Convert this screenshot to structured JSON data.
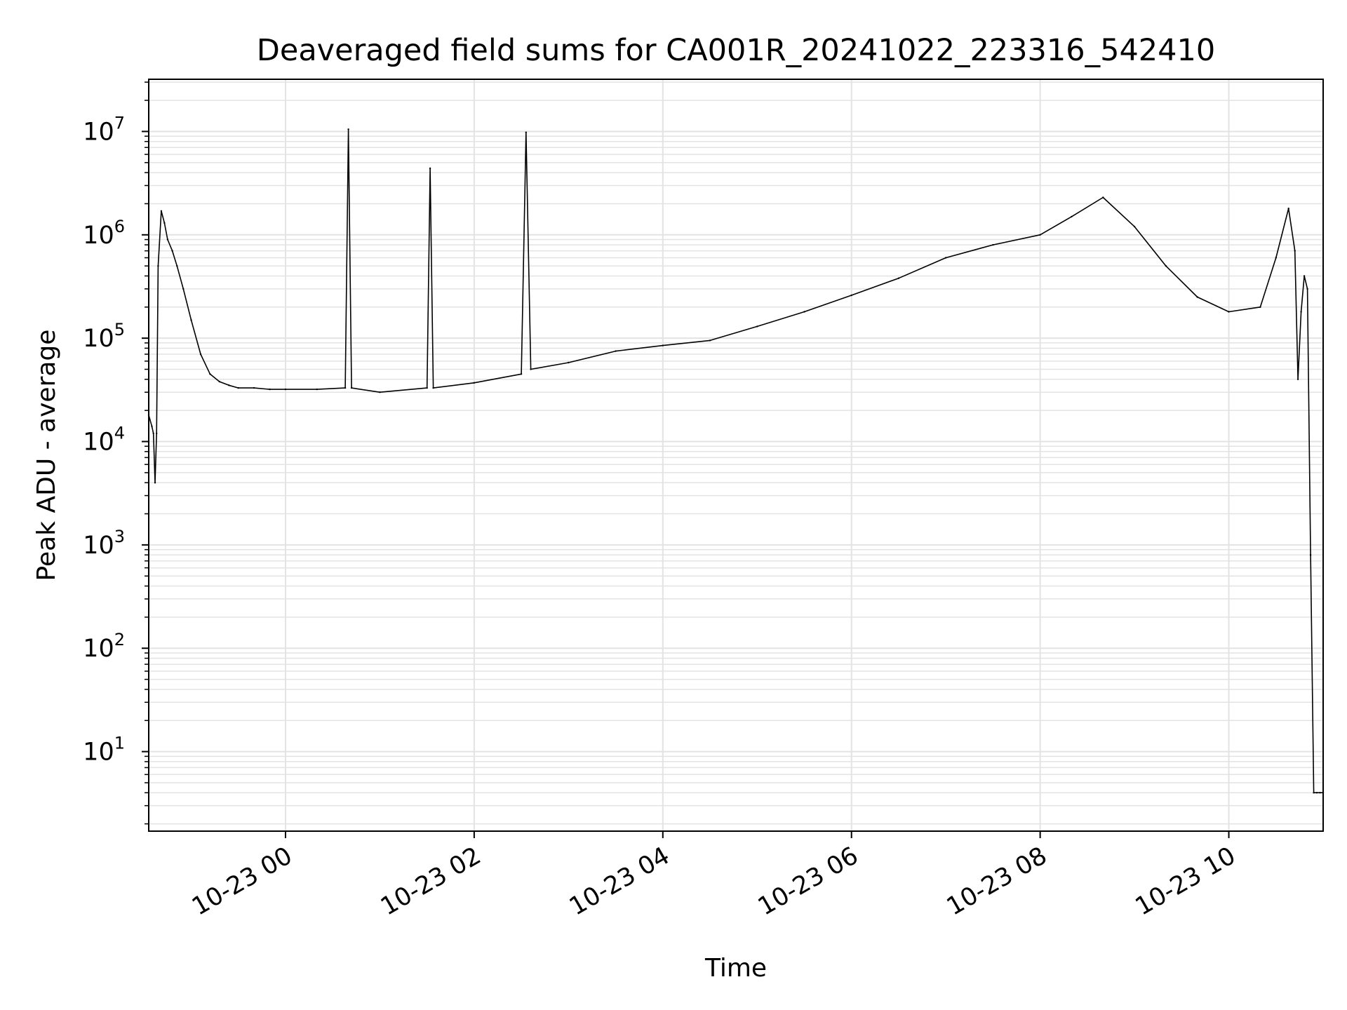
{
  "chart_data": {
    "type": "line",
    "title": "Deaveraged field sums for CA001R_20241022_223316_542410",
    "xlabel": "Time",
    "ylabel": "Peak ADU - average",
    "yscale": "log",
    "ylim": [
      1.7,
      32000000
    ],
    "xlim": [
      "2024-10-22 22:33",
      "2024-10-23 11:00"
    ],
    "grid": true,
    "line_color": "#000000",
    "x_ticks": [
      {
        "value": "2024-10-23 00:00",
        "label": "10-23 00"
      },
      {
        "value": "2024-10-23 02:00",
        "label": "10-23 02"
      },
      {
        "value": "2024-10-23 04:00",
        "label": "10-23 04"
      },
      {
        "value": "2024-10-23 06:00",
        "label": "10-23 06"
      },
      {
        "value": "2024-10-23 08:00",
        "label": "10-23 08"
      },
      {
        "value": "2024-10-23 10:00",
        "label": "10-23 10"
      }
    ],
    "y_ticks": [
      {
        "value": 10,
        "base": "10",
        "exp": "1"
      },
      {
        "value": 100,
        "base": "10",
        "exp": "2"
      },
      {
        "value": 1000,
        "base": "10",
        "exp": "3"
      },
      {
        "value": 10000,
        "base": "10",
        "exp": "4"
      },
      {
        "value": 100000,
        "base": "10",
        "exp": "5"
      },
      {
        "value": 1000000,
        "base": "10",
        "exp": "6"
      },
      {
        "value": 10000000,
        "base": "10",
        "exp": "7"
      }
    ],
    "series": [
      {
        "x": [
          "2024-10-22 22:33",
          "2024-10-22 22:35",
          "2024-10-22 22:36",
          "2024-10-22 22:37",
          "2024-10-22 22:38",
          "2024-10-22 22:39",
          "2024-10-22 22:41",
          "2024-10-22 22:43",
          "2024-10-22 22:45",
          "2024-10-22 22:48",
          "2024-10-22 22:51",
          "2024-10-22 22:55",
          "2024-10-22 23:00",
          "2024-10-22 23:06",
          "2024-10-22 23:12",
          "2024-10-22 23:18",
          "2024-10-22 23:24",
          "2024-10-22 23:30",
          "2024-10-22 23:40",
          "2024-10-22 23:50",
          "2024-10-23 00:00",
          "2024-10-23 00:20",
          "2024-10-23 00:38",
          "2024-10-23 00:40",
          "2024-10-23 00:42",
          "2024-10-23 01:00",
          "2024-10-23 01:30",
          "2024-10-23 01:32",
          "2024-10-23 01:34",
          "2024-10-23 02:00",
          "2024-10-23 02:30",
          "2024-10-23 02:33",
          "2024-10-23 02:36",
          "2024-10-23 03:00",
          "2024-10-23 03:30",
          "2024-10-23 04:00",
          "2024-10-23 04:30",
          "2024-10-23 05:00",
          "2024-10-23 05:30",
          "2024-10-23 06:00",
          "2024-10-23 06:30",
          "2024-10-23 07:00",
          "2024-10-23 07:30",
          "2024-10-23 08:00",
          "2024-10-23 08:20",
          "2024-10-23 08:40",
          "2024-10-23 09:00",
          "2024-10-23 09:20",
          "2024-10-23 09:40",
          "2024-10-23 10:00",
          "2024-10-23 10:20",
          "2024-10-23 10:30",
          "2024-10-23 10:38",
          "2024-10-23 10:42",
          "2024-10-23 10:44",
          "2024-10-23 10:46",
          "2024-10-23 10:48",
          "2024-10-23 10:50",
          "2024-10-23 10:52",
          "2024-10-23 10:54",
          "2024-10-23 10:56",
          "2024-10-23 10:58",
          "2024-10-23 11:00"
        ],
        "y": [
          18000,
          14000,
          12000,
          4000,
          12000,
          500000,
          1700000,
          1300000,
          900000,
          700000,
          500000,
          300000,
          150000,
          70000,
          45000,
          38000,
          35000,
          33000,
          33000,
          32000,
          32000,
          32000,
          33000,
          10500000,
          33000,
          30000,
          33000,
          4400000,
          33000,
          37000,
          45000,
          9800000,
          50000,
          58000,
          75000,
          85000,
          95000,
          130000,
          180000,
          260000,
          380000,
          600000,
          800000,
          1000000,
          1500000,
          2300000,
          1200000,
          500000,
          250000,
          180000,
          200000,
          600000,
          1800000,
          700000,
          40000,
          180000,
          400000,
          300000,
          800,
          4,
          4,
          4,
          4
        ]
      }
    ]
  }
}
